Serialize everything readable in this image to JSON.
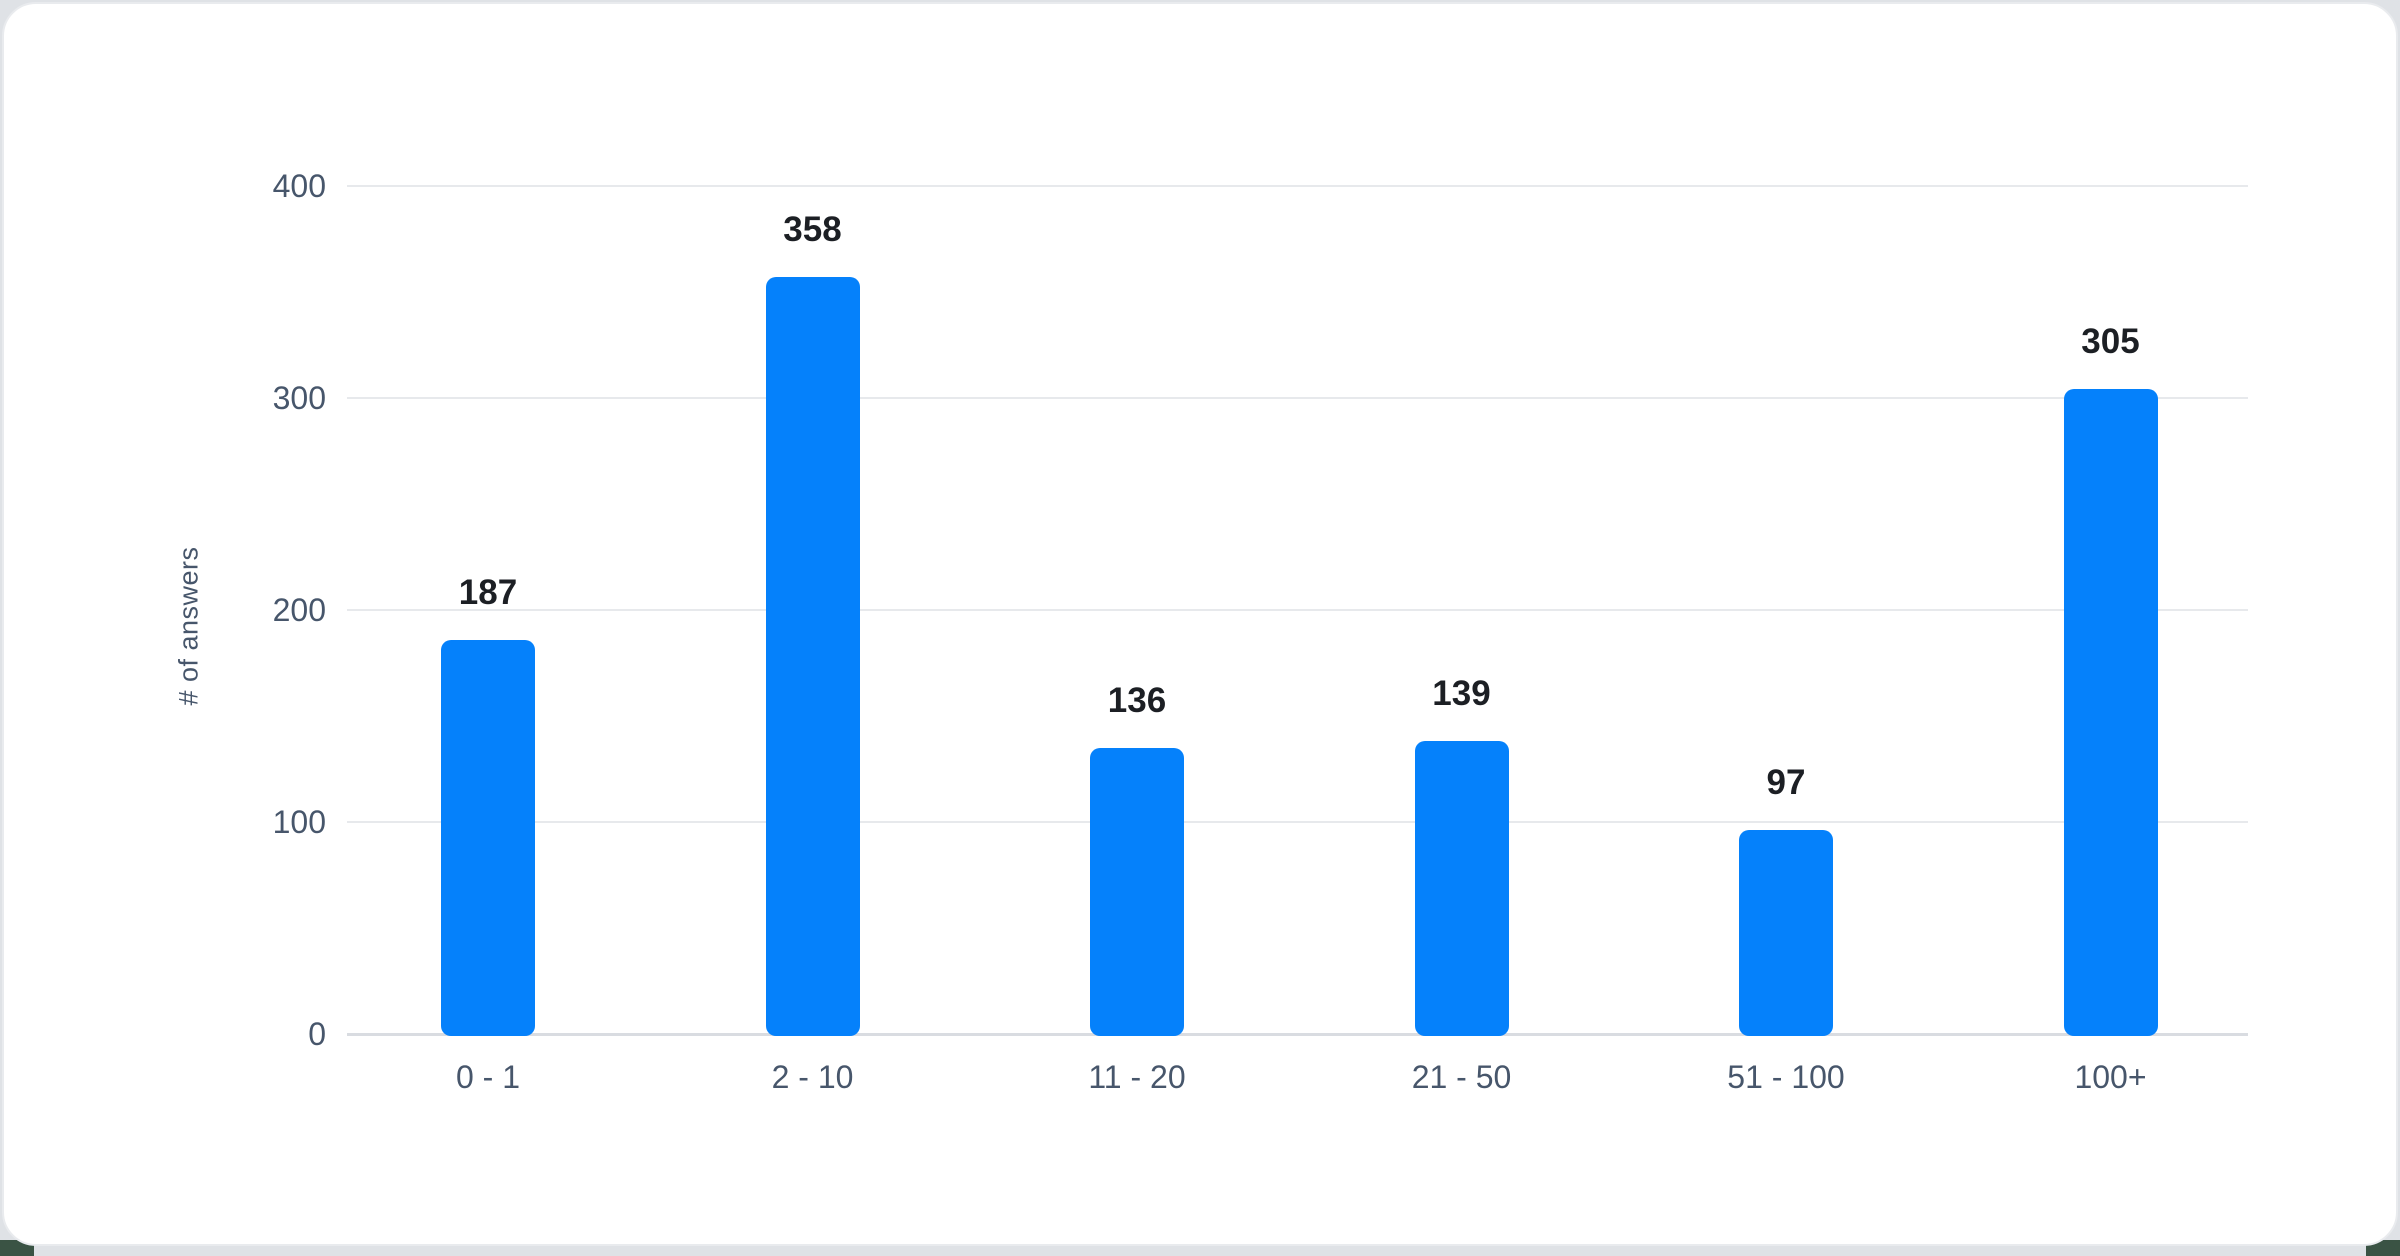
{
  "chart_data": {
    "type": "bar",
    "title": "",
    "categories": [
      "0 - 1",
      "2 - 10",
      "11 - 20",
      "21 - 50",
      "51 - 100",
      "100+"
    ],
    "values": [
      187,
      358,
      136,
      139,
      97,
      305
    ],
    "value_labels": [
      "187",
      "358",
      "136",
      "139",
      "97",
      "305"
    ],
    "xlabel": "",
    "ylabel": "# of answers",
    "yticks": [
      0,
      100,
      200,
      300,
      400
    ],
    "ytick_labels": [
      "0",
      "100",
      "200",
      "300",
      "400"
    ],
    "ylim": [
      0,
      400
    ],
    "grid": "horizontal-only",
    "legend": "none",
    "colors": {
      "bar": "#0581fb",
      "value_label": "#1c1f24",
      "axis_label": "#47566b",
      "gridline": "#e7e9ec",
      "baseline": "#d9dce1",
      "card_background": "#ffffff",
      "page_background": "#dfe2e6",
      "corner_accent": "#3a5344"
    }
  }
}
